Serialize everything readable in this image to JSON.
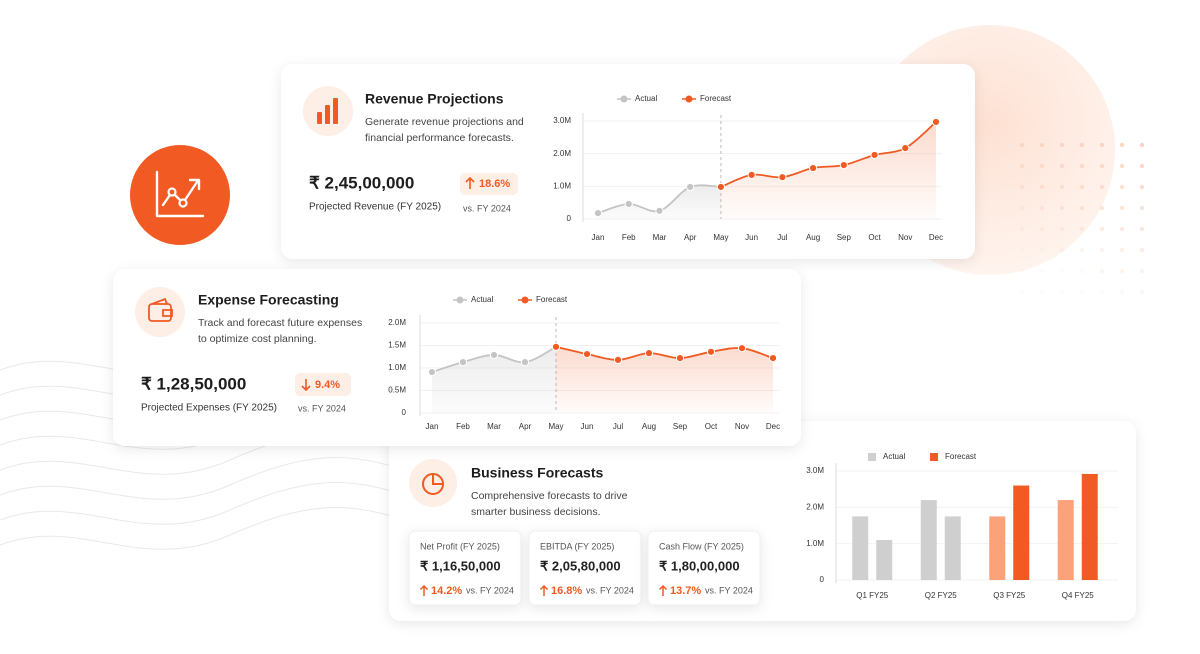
{
  "cards": [
    {
      "title": "Revenue Projections",
      "description": [
        "Generate revenue projections and",
        "financial performance forecasts."
      ],
      "value": "₹ 2,45,00,000",
      "label": "Projected Revenue (FY 2025)",
      "change": "18.6%",
      "comparison": "vs. FY 2024"
    },
    {
      "title": "Expense Forecasting",
      "description": [
        "Track and forecast future expenses",
        "to optimize cost planning."
      ],
      "value": "₹ 1,28,50,000",
      "label": "Projected Expenses (FY 2025)",
      "change": "9.4%",
      "comparison": "vs. FY 2024"
    },
    {
      "title": "Business Forecasts",
      "description": [
        "Comprehensive forecasts to drive",
        "smarter business decisions."
      ],
      "metrics": [
        {
          "label": "Net Profit (FY 2025)",
          "value": "₹ 1,16,50,000",
          "change": "14.2%",
          "comparison": "vs. FY 2024"
        },
        {
          "label": "EBITDA (FY 2025)",
          "value": "₹ 2,05,80,000",
          "change": "16.8%",
          "comparison": "vs. FY 2024"
        },
        {
          "label": "Cash Flow (FY 2025)",
          "value": "₹ 1,80,00,000",
          "change": "13.7%",
          "comparison": "vs. FY 2024"
        }
      ]
    }
  ],
  "chart_data": [
    {
      "type": "line",
      "categories": [
        "Jan",
        "Feb",
        "Mar",
        "Apr",
        "May",
        "Jun",
        "Jul",
        "Aug",
        "Sep",
        "Oct",
        "Nov",
        "Dec"
      ],
      "series": [
        {
          "name": "Actual",
          "color": "#c4c4c4",
          "values": [
            0.18,
            0.46,
            0.25,
            0.98,
            0.98,
            null,
            null,
            null,
            null,
            null,
            null,
            null
          ]
        },
        {
          "name": "Forecast",
          "color": "#f15a22",
          "values": [
            null,
            null,
            null,
            null,
            0.98,
            1.35,
            1.28,
            1.56,
            1.65,
            1.96,
            2.17,
            2.97
          ]
        }
      ],
      "ylim": [
        0,
        3
      ],
      "yticks": [
        0,
        {
          "value": 1,
          "label": "1.0M"
        },
        {
          "value": 2,
          "label": "2.0M"
        },
        {
          "value": 3,
          "label": "3.0M"
        }
      ],
      "grid": true
    },
    {
      "type": "line",
      "categories": [
        "Jan",
        "Feb",
        "Mar",
        "Apr",
        "May",
        "Jun",
        "Jul",
        "Aug",
        "Sep",
        "Oct",
        "Nov",
        "Dec"
      ],
      "series": [
        {
          "name": "Actual",
          "color": "#c4c4c4",
          "values": [
            0.91,
            1.13,
            1.29,
            1.13,
            1.47,
            null,
            null,
            null,
            null,
            null,
            null,
            null
          ]
        },
        {
          "name": "Forecast",
          "color": "#f15a22",
          "values": [
            null,
            null,
            null,
            null,
            1.47,
            1.31,
            1.18,
            1.33,
            1.22,
            1.36,
            1.44,
            1.22
          ]
        }
      ],
      "ylim": [
        0,
        2
      ],
      "yticks": [
        0,
        {
          "value": 0.5,
          "label": "0.5M"
        },
        {
          "value": 1,
          "label": "1.0M"
        },
        {
          "value": 1.5,
          "label": "1.5M"
        },
        {
          "value": 2,
          "label": "2.0M"
        }
      ],
      "grid": true
    },
    {
      "type": "bar",
      "categories": [
        "Q1 FY25",
        "Q2 FY25",
        "Q3 FY25",
        "Q4 FY25"
      ],
      "series": [
        {
          "name": "Actual",
          "color": "#cfcfcf",
          "colors": [
            "#cfcfcf",
            "#cfcfcf",
            "#fba27a",
            "#fba27a"
          ],
          "values": [
            1.75,
            2.2,
            1.75,
            2.2
          ]
        },
        {
          "name": "Forecast",
          "color": "#f15a22",
          "colors": [
            "#cfcfcf",
            "#cfcfcf",
            "#f15a22",
            "#f15a22"
          ],
          "values": [
            1.1,
            1.75,
            2.6,
            2.92
          ]
        }
      ],
      "ylim": [
        0,
        3
      ],
      "yticks": [
        0,
        {
          "value": 1,
          "label": "1.0M"
        },
        {
          "value": 2,
          "label": "2.0M"
        },
        {
          "value": 3,
          "label": "3.0M"
        }
      ],
      "grid": true
    }
  ]
}
